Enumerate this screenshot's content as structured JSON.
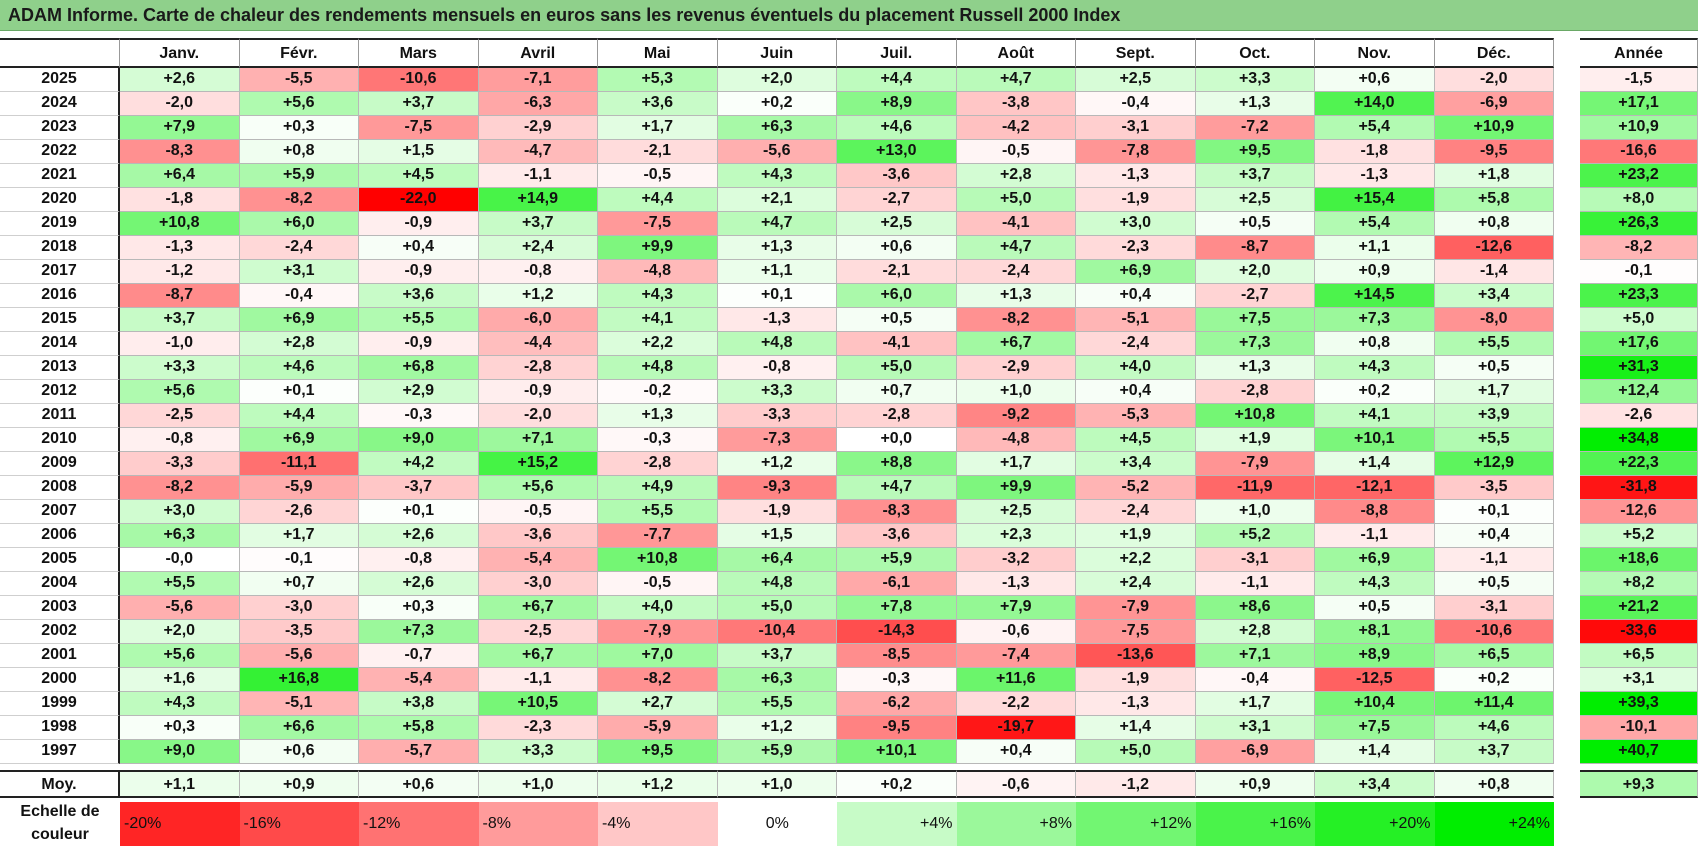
{
  "title": "ADAM Informe. Carte de chaleur des rendements mensuels en euros sans les revenus éventuels du placement Russell 2000 Index",
  "chart_data": {
    "type": "heatmap",
    "title": "ADAM Informe. Carte de chaleur des rendements mensuels en euros sans les revenus éventuels du placement Russell 2000 Index",
    "months": [
      "Janv.",
      "Févr.",
      "Mars",
      "Avril",
      "Mai",
      "Juin",
      "Juil.",
      "Août",
      "Sept.",
      "Oct.",
      "Nov.",
      "Déc."
    ],
    "year_header": "Année",
    "rows": [
      {
        "year": "2025",
        "values": [
          "+2,6",
          "-5,5",
          "-10,6",
          "-7,1",
          "+5,3",
          "+2,0",
          "+4,4",
          "+4,7",
          "+2,5",
          "+3,3",
          "+0,6",
          "-2,0"
        ],
        "annual": "-1,5"
      },
      {
        "year": "2024",
        "values": [
          "-2,0",
          "+5,6",
          "+3,7",
          "-6,3",
          "+3,6",
          "+0,2",
          "+8,9",
          "-3,8",
          "-0,4",
          "+1,3",
          "+14,0",
          "-6,9"
        ],
        "annual": "+17,1"
      },
      {
        "year": "2023",
        "values": [
          "+7,9",
          "+0,3",
          "-7,5",
          "-2,9",
          "+1,7",
          "+6,3",
          "+4,6",
          "-4,2",
          "-3,1",
          "-7,2",
          "+5,4",
          "+10,9"
        ],
        "annual": "+10,9"
      },
      {
        "year": "2022",
        "values": [
          "-8,3",
          "+0,8",
          "+1,5",
          "-4,7",
          "-2,1",
          "-5,6",
          "+13,0",
          "-0,5",
          "-7,8",
          "+9,5",
          "-1,8",
          "-9,5"
        ],
        "annual": "-16,6"
      },
      {
        "year": "2021",
        "values": [
          "+6,4",
          "+5,9",
          "+4,5",
          "-1,1",
          "-0,5",
          "+4,3",
          "-3,6",
          "+2,8",
          "-1,3",
          "+3,7",
          "-1,3",
          "+1,8"
        ],
        "annual": "+23,2"
      },
      {
        "year": "2020",
        "values": [
          "-1,8",
          "-8,2",
          "-22,0",
          "+14,9",
          "+4,4",
          "+2,1",
          "-2,7",
          "+5,0",
          "-1,9",
          "+2,5",
          "+15,4",
          "+5,8"
        ],
        "annual": "+8,0"
      },
      {
        "year": "2019",
        "values": [
          "+10,8",
          "+6,0",
          "-0,9",
          "+3,7",
          "-7,5",
          "+4,7",
          "+2,5",
          "-4,1",
          "+3,0",
          "+0,5",
          "+5,4",
          "+0,8"
        ],
        "annual": "+26,3"
      },
      {
        "year": "2018",
        "values": [
          "-1,3",
          "-2,4",
          "+0,4",
          "+2,4",
          "+9,9",
          "+1,3",
          "+0,6",
          "+4,7",
          "-2,3",
          "-8,7",
          "+1,1",
          "-12,6"
        ],
        "annual": "-8,2"
      },
      {
        "year": "2017",
        "values": [
          "-1,2",
          "+3,1",
          "-0,9",
          "-0,8",
          "-4,8",
          "+1,1",
          "-2,1",
          "-2,4",
          "+6,9",
          "+2,0",
          "+0,9",
          "-1,4"
        ],
        "annual": "-0,1"
      },
      {
        "year": "2016",
        "values": [
          "-8,7",
          "-0,4",
          "+3,6",
          "+1,2",
          "+4,3",
          "+0,1",
          "+6,0",
          "+1,3",
          "+0,4",
          "-2,7",
          "+14,5",
          "+3,4"
        ],
        "annual": "+23,3"
      },
      {
        "year": "2015",
        "values": [
          "+3,7",
          "+6,9",
          "+5,5",
          "-6,0",
          "+4,1",
          "-1,3",
          "+0,5",
          "-8,2",
          "-5,1",
          "+7,5",
          "+7,3",
          "-8,0"
        ],
        "annual": "+5,0"
      },
      {
        "year": "2014",
        "values": [
          "-1,0",
          "+2,8",
          "-0,9",
          "-4,4",
          "+2,2",
          "+4,8",
          "-4,1",
          "+6,7",
          "-2,4",
          "+7,3",
          "+0,8",
          "+5,5"
        ],
        "annual": "+17,6"
      },
      {
        "year": "2013",
        "values": [
          "+3,3",
          "+4,6",
          "+6,8",
          "-2,8",
          "+4,8",
          "-0,8",
          "+5,0",
          "-2,9",
          "+4,0",
          "+1,3",
          "+4,3",
          "+0,5"
        ],
        "annual": "+31,3"
      },
      {
        "year": "2012",
        "values": [
          "+5,6",
          "+0,1",
          "+2,9",
          "-0,9",
          "-0,2",
          "+3,3",
          "+0,7",
          "+1,0",
          "+0,4",
          "-2,8",
          "+0,2",
          "+1,7"
        ],
        "annual": "+12,4"
      },
      {
        "year": "2011",
        "values": [
          "-2,5",
          "+4,4",
          "-0,3",
          "-2,0",
          "+1,3",
          "-3,3",
          "-2,8",
          "-9,2",
          "-5,3",
          "+10,8",
          "+4,1",
          "+3,9"
        ],
        "annual": "-2,6"
      },
      {
        "year": "2010",
        "values": [
          "-0,8",
          "+6,9",
          "+9,0",
          "+7,1",
          "-0,3",
          "-7,3",
          "+0,0",
          "-4,8",
          "+4,5",
          "+1,9",
          "+10,1",
          "+5,5"
        ],
        "annual": "+34,8"
      },
      {
        "year": "2009",
        "values": [
          "-3,3",
          "-11,1",
          "+4,2",
          "+15,2",
          "-2,8",
          "+1,2",
          "+8,8",
          "+1,7",
          "+3,4",
          "-7,9",
          "+1,4",
          "+12,9"
        ],
        "annual": "+22,3"
      },
      {
        "year": "2008",
        "values": [
          "-8,2",
          "-5,9",
          "-3,7",
          "+5,6",
          "+4,9",
          "-9,3",
          "+4,7",
          "+9,9",
          "-5,2",
          "-11,9",
          "-12,1",
          "-3,5"
        ],
        "annual": "-31,8"
      },
      {
        "year": "2007",
        "values": [
          "+3,0",
          "-2,6",
          "+0,1",
          "-0,5",
          "+5,5",
          "-1,9",
          "-8,3",
          "+2,5",
          "-2,4",
          "+1,0",
          "-8,8",
          "+0,1"
        ],
        "annual": "-12,6"
      },
      {
        "year": "2006",
        "values": [
          "+6,3",
          "+1,7",
          "+2,6",
          "-3,6",
          "-7,7",
          "+1,5",
          "-3,6",
          "+2,3",
          "+1,9",
          "+5,2",
          "-1,1",
          "+0,4"
        ],
        "annual": "+5,2"
      },
      {
        "year": "2005",
        "values": [
          "-0,0",
          "-0,1",
          "-0,8",
          "-5,4",
          "+10,8",
          "+6,4",
          "+5,9",
          "-3,2",
          "+2,2",
          "-3,1",
          "+6,9",
          "-1,1"
        ],
        "annual": "+18,6"
      },
      {
        "year": "2004",
        "values": [
          "+5,5",
          "+0,7",
          "+2,6",
          "-3,0",
          "-0,5",
          "+4,8",
          "-6,1",
          "-1,3",
          "+2,4",
          "-1,1",
          "+4,3",
          "+0,5"
        ],
        "annual": "+8,2"
      },
      {
        "year": "2003",
        "values": [
          "-5,6",
          "-3,0",
          "+0,3",
          "+6,7",
          "+4,0",
          "+5,0",
          "+7,8",
          "+7,9",
          "-7,9",
          "+8,6",
          "+0,5",
          "-3,1"
        ],
        "annual": "+21,2"
      },
      {
        "year": "2002",
        "values": [
          "+2,0",
          "-3,5",
          "+7,3",
          "-2,5",
          "-7,9",
          "-10,4",
          "-14,3",
          "-0,6",
          "-7,5",
          "+2,8",
          "+8,1",
          "-10,6"
        ],
        "annual": "-33,6"
      },
      {
        "year": "2001",
        "values": [
          "+5,6",
          "-5,6",
          "-0,7",
          "+6,7",
          "+7,0",
          "+3,7",
          "-8,5",
          "-7,4",
          "-13,6",
          "+7,1",
          "+8,9",
          "+6,5"
        ],
        "annual": "+6,5"
      },
      {
        "year": "2000",
        "values": [
          "+1,6",
          "+16,8",
          "-5,4",
          "-1,1",
          "-8,2",
          "+6,3",
          "-0,3",
          "+11,6",
          "-1,9",
          "-0,4",
          "-12,5",
          "+0,2"
        ],
        "annual": "+3,1"
      },
      {
        "year": "1999",
        "values": [
          "+4,3",
          "-5,1",
          "+3,8",
          "+10,5",
          "+2,7",
          "+5,5",
          "-6,2",
          "-2,2",
          "-1,3",
          "+1,7",
          "+10,4",
          "+11,4"
        ],
        "annual": "+39,3"
      },
      {
        "year": "1998",
        "values": [
          "+0,3",
          "+6,6",
          "+5,8",
          "-2,3",
          "-5,9",
          "+1,2",
          "-9,5",
          "-19,7",
          "+1,4",
          "+3,1",
          "+7,5",
          "+4,6"
        ],
        "annual": "-10,1"
      },
      {
        "year": "1997",
        "values": [
          "+9,0",
          "+0,6",
          "-5,7",
          "+3,3",
          "+9,5",
          "+5,9",
          "+10,1",
          "+0,4",
          "+5,0",
          "-6,9",
          "+1,4",
          "+3,7"
        ],
        "annual": "+40,7"
      }
    ],
    "average": {
      "label": "Moy.",
      "values": [
        "+1,1",
        "+0,9",
        "+0,6",
        "+1,0",
        "+1,2",
        "+1,0",
        "+0,2",
        "-0,6",
        "-1,2",
        "+0,9",
        "+3,4",
        "+0,8"
      ],
      "annual": "+9,3"
    },
    "legend": {
      "label_line1": "Echelle de",
      "label_line2": "couleur",
      "steps": [
        {
          "label": "-20%",
          "value": -20
        },
        {
          "label": "-16%",
          "value": -16
        },
        {
          "label": "-12%",
          "value": -12
        },
        {
          "label": "-8%",
          "value": -8
        },
        {
          "label": "-4%",
          "value": -4
        },
        {
          "label": "0%",
          "value": 0
        },
        {
          "label": "+4%",
          "value": 4
        },
        {
          "label": "+8%",
          "value": 8
        },
        {
          "label": "+12%",
          "value": 12
        },
        {
          "label": "+16%",
          "value": 16
        },
        {
          "label": "+20%",
          "value": 20
        },
        {
          "label": "+24%",
          "value": 24
        }
      ]
    },
    "colors": {
      "negative": "#ff0000",
      "zero": "#ffffff",
      "positive": "#00ee00"
    },
    "color_scale_max": 22
  }
}
